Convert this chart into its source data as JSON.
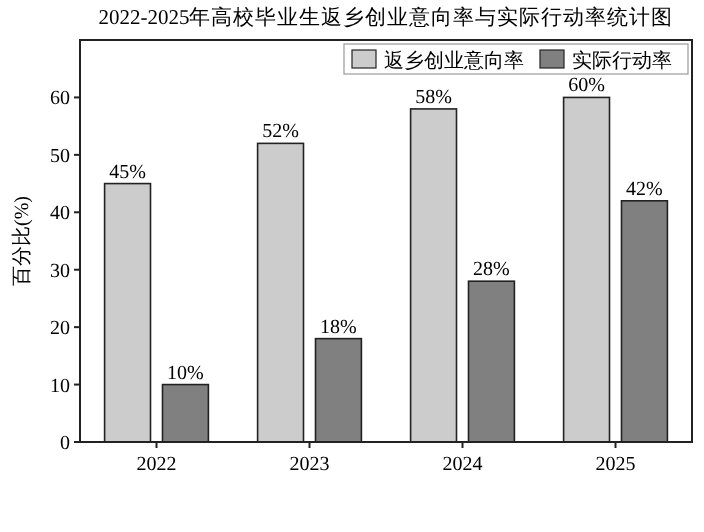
{
  "chart_data": {
    "type": "bar",
    "title": "2022-2025年高校毕业生返乡创业意向率与实际行动率统计图",
    "ylabel": "百分比(%)",
    "categories": [
      "2022",
      "2023",
      "2024",
      "2025"
    ],
    "series": [
      {
        "name": "返乡创业意向率",
        "color": "#cccccc",
        "values": [
          45,
          52,
          58,
          60
        ],
        "value_labels": [
          "45%",
          "52%",
          "58%",
          "60%"
        ]
      },
      {
        "name": "实际行动率",
        "color": "#808080",
        "values": [
          10,
          18,
          28,
          42
        ],
        "value_labels": [
          "10%",
          "18%",
          "28%",
          "42%"
        ]
      }
    ],
    "ylim": [
      0,
      70
    ],
    "yticks": [
      0,
      10,
      20,
      30,
      40,
      50,
      60
    ],
    "grid": false,
    "legend": "top right"
  }
}
